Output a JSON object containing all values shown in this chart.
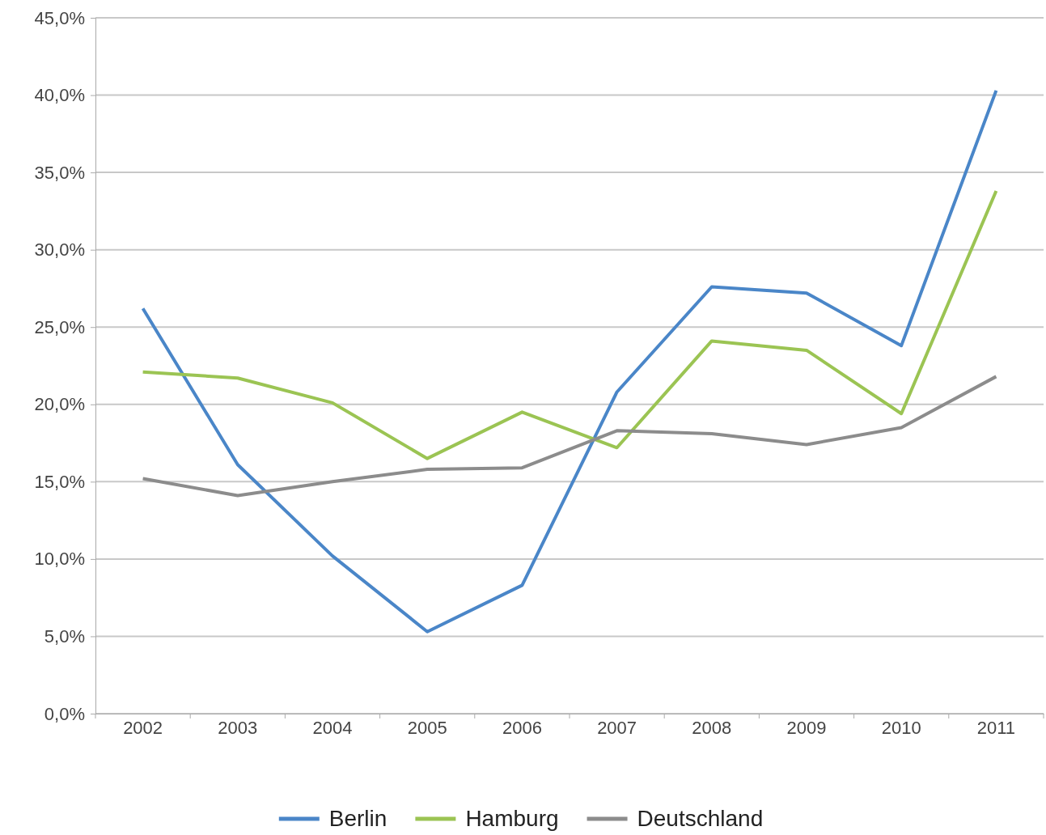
{
  "chart_data": {
    "type": "line",
    "categories": [
      "2002",
      "2003",
      "2004",
      "2005",
      "2006",
      "2007",
      "2008",
      "2009",
      "2010",
      "2011"
    ],
    "series": [
      {
        "name": "Berlin",
        "color": "#4a86c8",
        "values": [
          26.2,
          16.1,
          10.2,
          5.3,
          8.3,
          20.8,
          27.6,
          27.2,
          23.8,
          40.3
        ]
      },
      {
        "name": "Hamburg",
        "color": "#9bc453",
        "values": [
          22.1,
          21.7,
          20.1,
          16.5,
          19.5,
          17.2,
          24.1,
          23.5,
          19.4,
          33.8
        ]
      },
      {
        "name": "Deutschland",
        "color": "#8c8c8c",
        "values": [
          15.2,
          14.1,
          15.0,
          15.8,
          15.9,
          18.3,
          18.1,
          17.4,
          18.5,
          21.8
        ]
      }
    ],
    "ylim": [
      0,
      45
    ],
    "yticks": [
      {
        "value": 0,
        "label": "0,0%"
      },
      {
        "value": 5,
        "label": "5,0%"
      },
      {
        "value": 10,
        "label": "10,0%"
      },
      {
        "value": 15,
        "label": "15,0%"
      },
      {
        "value": 20,
        "label": "20,0%"
      },
      {
        "value": 25,
        "label": "25,0%"
      },
      {
        "value": 30,
        "label": "30,0%"
      },
      {
        "value": 35,
        "label": "35,0%"
      },
      {
        "value": 40,
        "label": "40,0%"
      },
      {
        "value": 45,
        "label": "45,0%"
      }
    ],
    "grid": "y",
    "legend": "bottom",
    "marker": "none",
    "line_style": "solid"
  }
}
